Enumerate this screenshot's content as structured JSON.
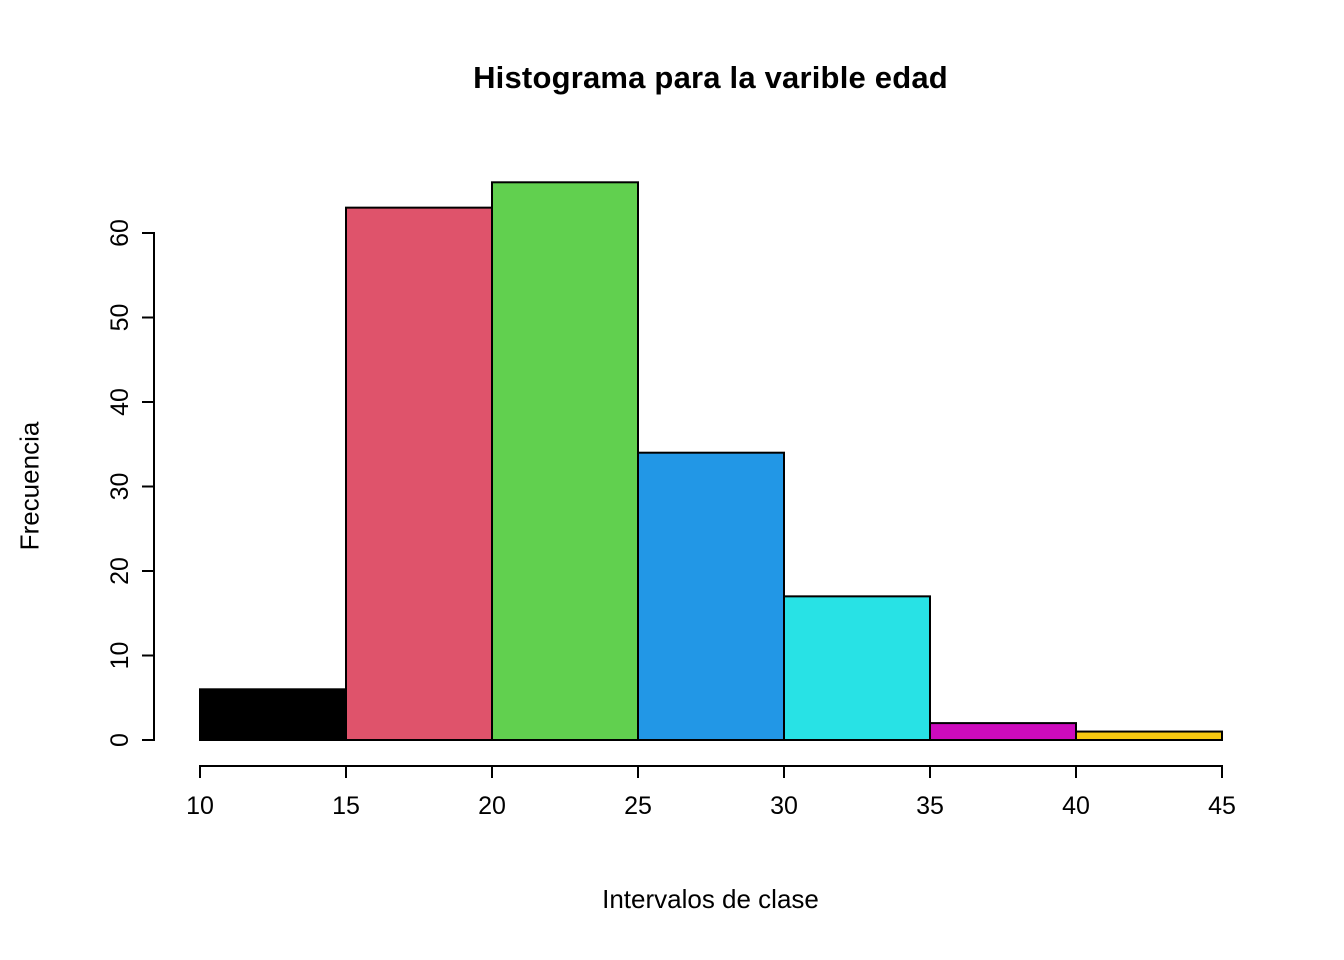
{
  "chart_data": {
    "type": "bar",
    "subtype": "histogram",
    "title": "Histograma para la varible edad",
    "xlabel": "Intervalos de clase",
    "ylabel": "Frecuencia",
    "bin_edges": [
      10,
      15,
      20,
      25,
      30,
      35,
      40,
      45
    ],
    "categories": [
      "10-15",
      "15-20",
      "20-25",
      "25-30",
      "30-35",
      "35-40",
      "40-45"
    ],
    "values": [
      6,
      63,
      66,
      34,
      17,
      2,
      1
    ],
    "bar_colors": [
      "#000000",
      "#DF536B",
      "#61D04F",
      "#2297E6",
      "#28E2E5",
      "#CD0BBC",
      "#F5C710"
    ],
    "bar_border_color": "#000000",
    "x_ticks": [
      10,
      15,
      20,
      25,
      30,
      35,
      40,
      45
    ],
    "y_ticks": [
      0,
      10,
      20,
      30,
      40,
      50,
      60
    ],
    "xlim": [
      10,
      45
    ],
    "ylim": [
      0,
      66
    ],
    "grid": false,
    "legend": false,
    "background": "#ffffff"
  }
}
